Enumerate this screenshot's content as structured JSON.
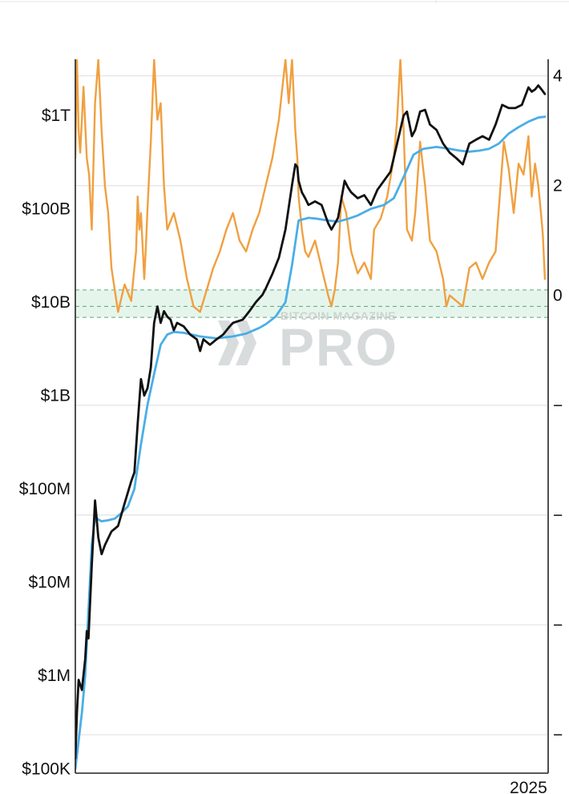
{
  "watermark": {
    "line1": "BITCOIN MAGAZINE",
    "line2": "PRO"
  },
  "colors": {
    "price": "#111111",
    "realized_cap": "#4aaee6",
    "oscillator": "#f0a040",
    "band_fill": "#e6f5ec",
    "band_line": "#5aa870",
    "grid": "#e6e6e6",
    "axis": "#222222"
  },
  "chart_data": {
    "type": "line",
    "title": "",
    "xlabel": "",
    "ylabel": "",
    "x_tick_labels": [
      "2025"
    ],
    "xlim": [
      2011.2,
      2025.6
    ],
    "left_axis": {
      "scale": "log",
      "tick_labels": [
        "$100K",
        "$1M",
        "$10M",
        "$100M",
        "$1B",
        "$10B",
        "$100B",
        "$1T"
      ],
      "tick_values": [
        100000,
        1000000,
        10000000,
        100000000,
        1000000000,
        10000000000,
        100000000000,
        1000000000000
      ],
      "ylim": [
        90000,
        4000000000000
      ]
    },
    "right_axis": {
      "scale": "linear",
      "tick_labels": [
        "4",
        "2",
        "0",
        "−",
        "−",
        "−",
        "−"
      ],
      "tick_values": [
        4,
        2,
        0,
        -2,
        -4,
        -6,
        -8
      ],
      "ylim": [
        -8.7,
        4.3
      ]
    },
    "grid": true,
    "legend": "none",
    "band": {
      "axis": "right",
      "upper": 0.1,
      "middle": -0.2,
      "lower": -0.4
    },
    "series": [
      {
        "axis": "left",
        "color": "#111111",
        "x": [
          2011.2,
          2011.25,
          2011.3,
          2011.4,
          2011.5,
          2011.55,
          2011.6,
          2011.7,
          2011.8,
          2011.9,
          2012.0,
          2012.1,
          2012.3,
          2012.5,
          2012.7,
          2012.9,
          2013.0,
          2013.1,
          2013.2,
          2013.3,
          2013.35,
          2013.4,
          2013.5,
          2013.6,
          2013.7,
          2013.8,
          2013.9,
          2014.0,
          2014.1,
          2014.2,
          2014.3,
          2014.5,
          2014.7,
          2014.9,
          2015.0,
          2015.1,
          2015.3,
          2015.5,
          2015.7,
          2015.9,
          2016.0,
          2016.3,
          2016.5,
          2016.7,
          2016.9,
          2017.0,
          2017.2,
          2017.4,
          2017.6,
          2017.8,
          2017.9,
          2017.96,
          2018.0,
          2018.1,
          2018.2,
          2018.3,
          2018.5,
          2018.7,
          2018.9,
          2019.0,
          2019.2,
          2019.4,
          2019.5,
          2019.6,
          2019.8,
          2020.0,
          2020.2,
          2020.4,
          2020.6,
          2020.8,
          2021.0,
          2021.2,
          2021.3,
          2021.45,
          2021.55,
          2021.7,
          2021.85,
          2022.0,
          2022.2,
          2022.4,
          2022.6,
          2022.8,
          2023.0,
          2023.2,
          2023.4,
          2023.6,
          2023.8,
          2024.0,
          2024.2,
          2024.4,
          2024.6,
          2024.8,
          2025.0,
          2025.1,
          2025.2,
          2025.3,
          2025.4,
          2025.5
        ],
        "y": [
          130000,
          400000,
          900000,
          700000,
          1500000,
          3000000,
          2500000,
          15000000,
          75000000,
          30000000,
          20000000,
          25000000,
          35000000,
          40000000,
          70000000,
          120000000,
          150000000,
          500000000,
          1500000000,
          1000000000,
          1100000000,
          1200000000,
          2000000000,
          6000000000,
          9000000000,
          6000000000,
          8000000000,
          7000000000,
          6500000000,
          5000000000,
          6000000000,
          5500000000,
          4500000000,
          4000000000,
          3000000000,
          4000000000,
          3500000000,
          4000000000,
          4500000000,
          5500000000,
          6000000000,
          6500000000,
          8000000000,
          10000000000,
          12000000000,
          14000000000,
          20000000000,
          30000000000,
          60000000000,
          180000000000,
          300000000000,
          280000000000,
          200000000000,
          150000000000,
          130000000000,
          110000000000,
          120000000000,
          110000000000,
          70000000000,
          60000000000,
          80000000000,
          200000000000,
          170000000000,
          150000000000,
          130000000000,
          140000000000,
          110000000000,
          160000000000,
          200000000000,
          250000000000,
          500000000000,
          1000000000000,
          1100000000000,
          600000000000,
          700000000000,
          1100000000000,
          1150000000000,
          800000000000,
          700000000000,
          500000000000,
          400000000000,
          350000000000,
          300000000000,
          500000000000,
          550000000000,
          600000000000,
          550000000000,
          800000000000,
          1300000000000,
          1200000000000,
          1200000000000,
          1300000000000,
          2000000000000,
          1800000000000,
          1900000000000,
          2100000000000,
          1900000000000,
          1700000000000
        ]
      },
      {
        "axis": "left",
        "color": "#4aaee6",
        "x": [
          2011.2,
          2011.3,
          2011.4,
          2011.5,
          2011.6,
          2011.7,
          2011.8,
          2011.9,
          2012.0,
          2012.2,
          2012.4,
          2012.6,
          2012.8,
          2013.0,
          2013.2,
          2013.4,
          2013.6,
          2013.8,
          2014.0,
          2014.2,
          2014.5,
          2015.0,
          2015.5,
          2016.0,
          2016.4,
          2016.8,
          2017.0,
          2017.3,
          2017.6,
          2017.8,
          2018.0,
          2018.3,
          2018.6,
          2018.9,
          2019.2,
          2019.5,
          2019.8,
          2020.2,
          2020.6,
          2020.9,
          2021.2,
          2021.5,
          2021.8,
          2022.2,
          2022.6,
          2022.9,
          2023.2,
          2023.5,
          2023.8,
          2024.1,
          2024.4,
          2024.7,
          2025.0,
          2025.3,
          2025.5
        ],
        "y": [
          100000,
          200000,
          400000,
          1000000,
          5000000,
          25000000,
          50000000,
          47000000,
          45000000,
          46000000,
          48000000,
          55000000,
          65000000,
          100000000,
          300000000,
          800000000,
          1700000000,
          3500000000,
          4500000000,
          4800000000,
          4700000000,
          4300000000,
          4100000000,
          4300000000,
          4600000000,
          5300000000,
          5800000000,
          7000000000,
          10000000000,
          25000000000,
          75000000000,
          80000000000,
          78000000000,
          75000000000,
          73000000000,
          78000000000,
          85000000000,
          100000000000,
          110000000000,
          130000000000,
          220000000000,
          380000000000,
          440000000000,
          460000000000,
          440000000000,
          420000000000,
          410000000000,
          420000000000,
          440000000000,
          500000000000,
          640000000000,
          750000000000,
          860000000000,
          950000000000,
          970000000000
        ]
      },
      {
        "axis": "right",
        "color": "#f0a040",
        "x": [
          2011.2,
          2011.25,
          2011.3,
          2011.35,
          2011.45,
          2011.55,
          2011.62,
          2011.7,
          2011.8,
          2011.9,
          2012.0,
          2012.1,
          2012.2,
          2012.3,
          2012.5,
          2012.7,
          2012.9,
          2013.0,
          2013.05,
          2013.1,
          2013.15,
          2013.2,
          2013.3,
          2013.35,
          2013.4,
          2013.5,
          2013.6,
          2013.7,
          2013.8,
          2013.9,
          2014.0,
          2014.2,
          2014.4,
          2014.6,
          2014.8,
          2015.0,
          2015.2,
          2015.4,
          2015.6,
          2015.8,
          2016.0,
          2016.2,
          2016.4,
          2016.6,
          2016.8,
          2017.0,
          2017.2,
          2017.4,
          2017.6,
          2017.7,
          2017.8,
          2017.9,
          2017.96,
          2018.0,
          2018.1,
          2018.2,
          2018.3,
          2018.5,
          2018.7,
          2018.9,
          2019.0,
          2019.1,
          2019.2,
          2019.3,
          2019.45,
          2019.6,
          2019.8,
          2020.0,
          2020.2,
          2020.3,
          2020.5,
          2020.7,
          2020.9,
          2021.0,
          2021.1,
          2021.2,
          2021.3,
          2021.45,
          2021.55,
          2021.7,
          2021.85,
          2022.0,
          2022.2,
          2022.4,
          2022.5,
          2022.6,
          2022.8,
          2023.0,
          2023.2,
          2023.4,
          2023.6,
          2023.8,
          2024.0,
          2024.15,
          2024.25,
          2024.4,
          2024.55,
          2024.7,
          2024.85,
          2025.0,
          2025.1,
          2025.2,
          2025.3,
          2025.38,
          2025.44,
          2025.5
        ],
        "y": [
          2.5,
          4.3,
          3.0,
          2.6,
          3.8,
          2.5,
          2.2,
          1.2,
          3.5,
          4.3,
          3.0,
          2.0,
          1.5,
          0.5,
          -0.3,
          0.2,
          -0.1,
          0.5,
          0.8,
          1.8,
          1.2,
          1.5,
          0.3,
          0.9,
          1.6,
          2.8,
          4.3,
          3.2,
          3.5,
          2.0,
          1.2,
          1.5,
          1.0,
          0.3,
          -0.2,
          -0.3,
          0.1,
          0.5,
          0.8,
          1.2,
          1.5,
          1.0,
          0.8,
          1.2,
          1.5,
          2.0,
          2.5,
          3.2,
          4.3,
          3.5,
          4.3,
          3.0,
          2.5,
          1.8,
          1.2,
          0.8,
          0.7,
          1.0,
          0.5,
          0.0,
          -0.2,
          0.1,
          0.6,
          1.8,
          1.5,
          0.8,
          0.4,
          0.6,
          0.3,
          1.2,
          1.4,
          1.8,
          2.5,
          3.2,
          4.3,
          3.0,
          1.2,
          1.0,
          1.5,
          2.8,
          2.0,
          1.0,
          0.8,
          0.3,
          -0.2,
          0.0,
          -0.1,
          -0.2,
          0.5,
          0.6,
          0.3,
          0.6,
          0.8,
          2.0,
          2.8,
          2.3,
          1.5,
          2.4,
          2.2,
          2.9,
          1.8,
          2.4,
          2.0,
          1.5,
          1.1,
          0.3
        ]
      }
    ]
  }
}
